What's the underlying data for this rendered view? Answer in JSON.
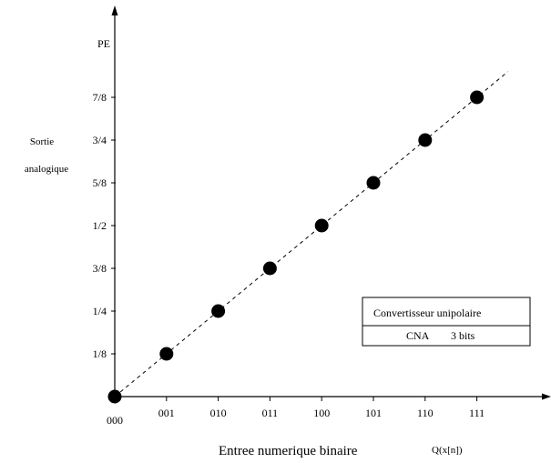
{
  "chart_data": {
    "type": "scatter",
    "x_categories": [
      "000",
      "001",
      "010",
      "011",
      "100",
      "101",
      "110",
      "111"
    ],
    "y_tick_labels": [
      "1/8",
      "1/4",
      "3/8",
      "1/2",
      "5/8",
      "3/4",
      "7/8"
    ],
    "y_top_label": "PE",
    "points": [
      {
        "x": "000",
        "y": 0
      },
      {
        "x": "001",
        "y": 0.125
      },
      {
        "x": "010",
        "y": 0.25
      },
      {
        "x": "011",
        "y": 0.375
      },
      {
        "x": "100",
        "y": 0.5
      },
      {
        "x": "101",
        "y": 0.625
      },
      {
        "x": "110",
        "y": 0.75
      },
      {
        "x": "111",
        "y": 0.875
      }
    ],
    "ylabel_line1": "Sortie",
    "ylabel_line2": "analogique",
    "xlabel": "Entree numerique binaire",
    "xlabel_suffix": "Q(x[n])",
    "ylim": [
      0,
      1
    ],
    "trend_line": "dashed",
    "legend": {
      "line1": "Convertisseur unipolaire",
      "line2a": "CNA",
      "line2b": "3 bits",
      "position": "bottom-right"
    }
  }
}
